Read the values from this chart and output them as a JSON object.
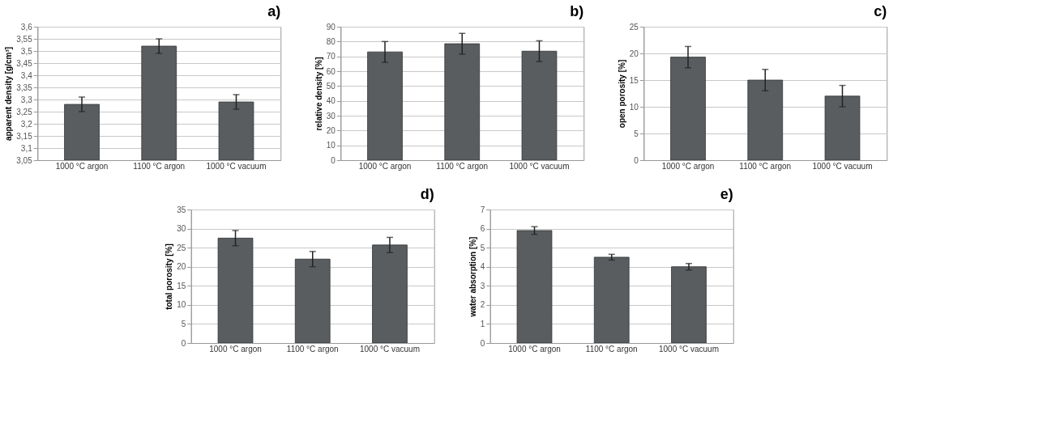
{
  "chart_data": [
    {
      "type": "bar",
      "title": "a)",
      "ylabel": "apparent density [g/cm³]",
      "categories": [
        "1000 °C argon",
        "1100 °C argon",
        "1000 °C vacuum"
      ],
      "values": [
        3.28,
        3.52,
        3.29
      ],
      "errors": [
        0.03,
        0.03,
        0.03
      ],
      "color": "#5a5d60",
      "ylim": [
        3.05,
        3.6
      ],
      "yticks": [
        {
          "value": 3.05,
          "label": "3,05"
        },
        {
          "value": 3.1,
          "label": "3,1"
        },
        {
          "value": 3.15,
          "label": "3,15"
        },
        {
          "value": 3.2,
          "label": "3,2"
        },
        {
          "value": 3.25,
          "label": "3,25"
        },
        {
          "value": 3.3,
          "label": "3,3"
        },
        {
          "value": 3.35,
          "label": "3,35"
        },
        {
          "value": 3.4,
          "label": "3,4"
        },
        {
          "value": 3.45,
          "label": "3,45"
        },
        {
          "value": 3.5,
          "label": "3,5"
        },
        {
          "value": 3.55,
          "label": "3,55"
        },
        {
          "value": 3.6,
          "label": "3,6"
        }
      ],
      "grid": "y"
    },
    {
      "type": "bar",
      "title": "b)",
      "ylabel": "relative density [%]",
      "categories": [
        "1000 °C argon",
        "1100 °C argon",
        "1000 °C vacuum"
      ],
      "values": [
        73,
        78.5,
        73.5
      ],
      "errors": [
        7,
        7,
        7
      ],
      "color": "#5a5d60",
      "ylim": [
        0,
        90
      ],
      "yticks": [
        0,
        10,
        20,
        30,
        40,
        50,
        60,
        70,
        80,
        90
      ],
      "grid": "y"
    },
    {
      "type": "bar",
      "title": "c)",
      "ylabel": "open porosity [%]",
      "categories": [
        "1000 °C argon",
        "1100 °C argon",
        "1000 °C vacuum"
      ],
      "values": [
        19.3,
        15,
        12
      ],
      "errors": [
        2,
        2,
        2
      ],
      "color": "#5a5d60",
      "ylim": [
        0,
        25
      ],
      "yticks": [
        0,
        5,
        10,
        15,
        20,
        25
      ],
      "grid": "y"
    },
    {
      "type": "bar",
      "title": "d)",
      "ylabel": "total porosity [%]",
      "categories": [
        "1000 °C argon",
        "1100 °C argon",
        "1000 °C vacuum"
      ],
      "values": [
        27.5,
        22,
        25.7
      ],
      "errors": [
        2,
        2,
        2
      ],
      "color": "#5a5d60",
      "ylim": [
        0,
        35
      ],
      "yticks": [
        0,
        5,
        10,
        15,
        20,
        25,
        30,
        35
      ],
      "grid": "y"
    },
    {
      "type": "bar",
      "title": "e)",
      "ylabel": "water absorption [%]",
      "categories": [
        "1000 °C argon",
        "1100 °C argon",
        "1000 °C vacuum"
      ],
      "values": [
        5.9,
        4.5,
        4.0
      ],
      "errors": [
        0.2,
        0.15,
        0.17
      ],
      "color": "#5a5d60",
      "ylim": [
        0,
        7
      ],
      "yticks": [
        0,
        1,
        2,
        3,
        4,
        5,
        6,
        7
      ],
      "grid": "y"
    }
  ]
}
